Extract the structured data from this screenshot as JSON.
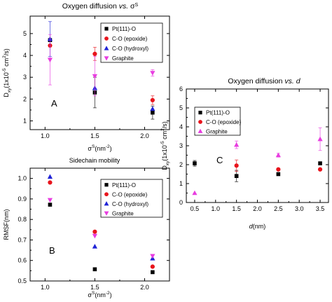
{
  "colors": {
    "pt111": "#000000",
    "epoxide": "#e8141c",
    "hydroxyl": "#1f22d6",
    "graphite": "#e83ce0",
    "axis": "#000000"
  },
  "chart_data": [
    {
      "panel": "A",
      "type": "scatter",
      "title": "Oxygen diffusion vs. σS",
      "title_parts": {
        "pre": "Oxygen diffusion ",
        "italic": "vs.",
        "post": " σ",
        "sup": "S"
      },
      "xlabel": {
        "pre": "σ",
        "sup1": "S",
        "mid": "(nm",
        "sup2": "-2",
        "post": ")"
      },
      "ylabel": {
        "pre": "D",
        "sub": "xy",
        "mid": "(1x10",
        "sup1": "-5",
        "mid2": " cm",
        "sup2": "2",
        "post": "/s)"
      },
      "xlim": [
        0.85,
        2.25
      ],
      "ylim": [
        0.6,
        5.8
      ],
      "xticks": [
        "1.0",
        "1.5",
        "2.0"
      ],
      "xtick_values": [
        1.0,
        1.5,
        2.0
      ],
      "yticks": [
        "1",
        "2",
        "3",
        "4",
        "5"
      ],
      "ytick_values": [
        1,
        2,
        3,
        4,
        5
      ],
      "legend_position": "top-right",
      "series": [
        {
          "name": "Pt(111)-O",
          "marker": "square",
          "color": "#000000",
          "points": [
            [
              1.05,
              4.7,
              0.0
            ],
            [
              1.5,
              2.3,
              0.7
            ],
            [
              2.08,
              1.38,
              0.3
            ]
          ]
        },
        {
          "name": "C-O (epoxide)",
          "marker": "circle",
          "color": "#e8141c",
          "points": [
            [
              1.05,
              4.45,
              0.0
            ],
            [
              1.5,
              4.07,
              0.3
            ],
            [
              2.08,
              1.95,
              0.2
            ]
          ]
        },
        {
          "name": "C-O (hydroxyl)",
          "marker": "triangle-up",
          "color": "#1f22d6",
          "points": [
            [
              1.05,
              4.75,
              0.8
            ],
            [
              1.5,
              2.5,
              0.0
            ],
            [
              2.08,
              1.55,
              0.0
            ]
          ]
        },
        {
          "name": "Graphite",
          "marker": "triangle-down",
          "color": "#e83ce0",
          "points": [
            [
              1.05,
              3.8,
              1.15
            ],
            [
              1.5,
              3.05,
              0.9
            ],
            [
              2.08,
              3.2,
              0.15
            ]
          ]
        }
      ]
    },
    {
      "panel": "B",
      "type": "scatter",
      "title": "Sidechain mobility",
      "xlabel": {
        "pre": "σ",
        "sup1": "S",
        "mid": "(nm",
        "sup2": "-2",
        "post": ")"
      },
      "ylabel": "RMSF(nm)",
      "xlim": [
        0.85,
        2.25
      ],
      "ylim": [
        0.5,
        1.05
      ],
      "xticks": [
        "1.0",
        "1.5",
        "2.0"
      ],
      "xtick_values": [
        1.0,
        1.5,
        2.0
      ],
      "yticks": [
        "0.5",
        "0.6",
        "0.7",
        "0.8",
        "0.9",
        "1.0"
      ],
      "ytick_values": [
        0.5,
        0.6,
        0.7,
        0.8,
        0.9,
        1.0
      ],
      "legend_position": "top-right",
      "series": [
        {
          "name": "Pt(111)-O",
          "marker": "square",
          "color": "#000000",
          "points": [
            [
              1.05,
              0.872,
              0
            ],
            [
              1.5,
              0.557,
              0
            ],
            [
              2.08,
              0.543,
              0
            ]
          ]
        },
        {
          "name": "C-O (epoxide)",
          "marker": "circle",
          "color": "#e8141c",
          "points": [
            [
              1.05,
              0.98,
              0
            ],
            [
              1.5,
              0.74,
              0
            ],
            [
              2.08,
              0.57,
              0
            ]
          ]
        },
        {
          "name": "C-O (hydroxyl)",
          "marker": "triangle-up",
          "color": "#1f22d6",
          "points": [
            [
              1.05,
              1.008,
              0
            ],
            [
              1.5,
              0.668,
              0
            ],
            [
              2.08,
              0.61,
              0
            ]
          ]
        },
        {
          "name": "Graphite",
          "marker": "triangle-down",
          "color": "#e83ce0",
          "points": [
            [
              1.05,
              0.895,
              0
            ],
            [
              1.5,
              0.72,
              0
            ],
            [
              2.08,
              0.622,
              0
            ]
          ]
        }
      ]
    },
    {
      "panel": "C",
      "type": "scatter",
      "title": "Oxygen diffusion vs. d",
      "title_parts": {
        "pre": "Oxygen diffusion ",
        "italic": "vs.",
        "post": " ",
        "italic2": "d"
      },
      "xlabel": {
        "italic": "d",
        "post": "(nm)"
      },
      "ylabel": {
        "pre": "D",
        "sub": "xy",
        "mid": "(1x10",
        "sup1": "-5",
        "mid2": " cm",
        "sup2": "2",
        "post": "/s)"
      },
      "xlim": [
        0.3,
        3.7
      ],
      "ylim": [
        0,
        6
      ],
      "xticks": [
        "0.5",
        "1.0",
        "1.5",
        "2.0",
        "2.5",
        "3.0",
        "3.5"
      ],
      "xtick_values": [
        0.5,
        1.0,
        1.5,
        2.0,
        2.5,
        3.0,
        3.5
      ],
      "yticks": [
        "0",
        "1",
        "2",
        "3",
        "4",
        "5",
        "6"
      ],
      "ytick_values": [
        0,
        1,
        2,
        3,
        4,
        5,
        6
      ],
      "legend_position": "top-left",
      "series": [
        {
          "name": "Pt(111)-O",
          "marker": "square",
          "color": "#000000",
          "points": [
            [
              0.5,
              2.07,
              0.15
            ],
            [
              1.5,
              1.4,
              0.3
            ],
            [
              2.5,
              1.5,
              0.0
            ],
            [
              3.5,
              2.07,
              0.0
            ]
          ]
        },
        {
          "name": "C-O (epoxide)",
          "marker": "circle",
          "color": "#e8141c",
          "points": [
            [
              1.5,
              1.95,
              0.3
            ],
            [
              2.5,
              1.75,
              0.0
            ],
            [
              3.5,
              1.75,
              0.0
            ]
          ]
        },
        {
          "name": "Graphite",
          "marker": "triangle-up",
          "color": "#e83ce0",
          "points": [
            [
              0.5,
              0.5,
              0.0
            ],
            [
              1.5,
              3.05,
              0.2
            ],
            [
              2.5,
              2.5,
              0.1
            ],
            [
              3.5,
              3.35,
              0.6
            ]
          ]
        }
      ]
    }
  ]
}
